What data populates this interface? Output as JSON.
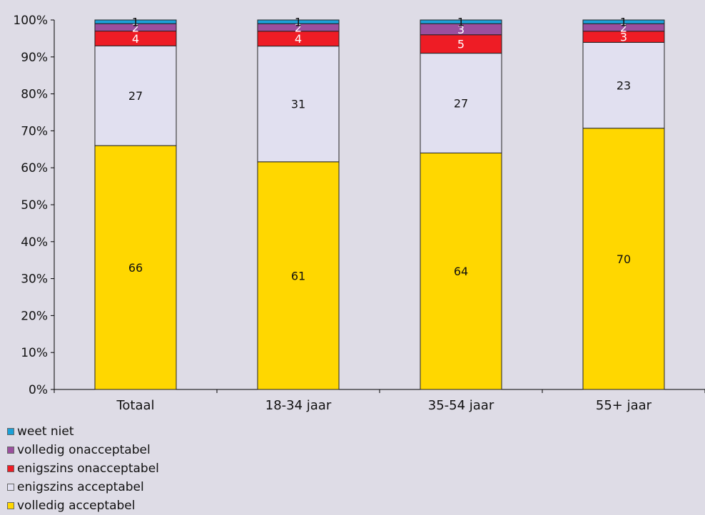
{
  "chart_data": {
    "type": "bar",
    "stacked": true,
    "percent": true,
    "categories": [
      "Totaal",
      "18-34 jaar",
      "35-54 jaar",
      "55+ jaar"
    ],
    "series": [
      {
        "name": "volledig acceptabel",
        "values": [
          66,
          61,
          64,
          70
        ],
        "color": "#ffd700"
      },
      {
        "name": "enigszins acceptabel",
        "values": [
          27,
          31,
          27,
          23
        ],
        "color": "#e1e0f0"
      },
      {
        "name": "enigszins onacceptabel",
        "values": [
          4,
          4,
          5,
          3
        ],
        "color": "#ee1c25"
      },
      {
        "name": "volledig onacceptabel",
        "values": [
          2,
          2,
          3,
          2
        ],
        "color": "#9b4f9e"
      },
      {
        "name": "weet niet",
        "values": [
          1,
          1,
          1,
          1
        ],
        "color": "#1ba0d8"
      }
    ],
    "ylim": [
      0,
      100
    ],
    "yticks": [
      "0%",
      "10%",
      "20%",
      "30%",
      "40%",
      "50%",
      "60%",
      "70%",
      "80%",
      "90%",
      "100%"
    ],
    "grid": false,
    "legend_position": "bottom-left",
    "legend_order": [
      "weet niet",
      "volledig onacceptabel",
      "enigszins onacceptabel",
      "enigszins acceptabel",
      "volledig acceptabel"
    ]
  }
}
